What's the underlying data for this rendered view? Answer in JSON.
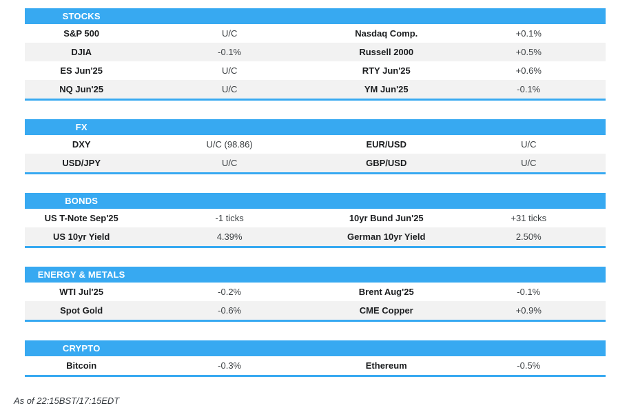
{
  "page": {
    "accent_color": "#37a9f1",
    "row_alt_color": "#f2f2f2",
    "footer": "As of 22:15BST/17:15EDT"
  },
  "sections": [
    {
      "title": "STOCKS",
      "rows": [
        {
          "label1": "S&P 500",
          "value1": "U/C",
          "label2": "Nasdaq Comp.",
          "value2": "+0.1%"
        },
        {
          "label1": "DJIA",
          "value1": "-0.1%",
          "label2": "Russell 2000",
          "value2": "+0.5%"
        },
        {
          "label1": "ES Jun'25",
          "value1": "U/C",
          "label2": "RTY Jun'25",
          "value2": "+0.6%"
        },
        {
          "label1": "NQ Jun'25",
          "value1": "U/C",
          "label2": "YM Jun'25",
          "value2": "-0.1%"
        }
      ]
    },
    {
      "title": "FX",
      "rows": [
        {
          "label1": "DXY",
          "value1": "U/C (98.86)",
          "label2": "EUR/USD",
          "value2": "U/C"
        },
        {
          "label1": "USD/JPY",
          "value1": "U/C",
          "label2": "GBP/USD",
          "value2": "U/C"
        }
      ]
    },
    {
      "title": "BONDS",
      "rows": [
        {
          "label1": "US T-Note Sep'25",
          "value1": "-1 ticks",
          "label2": "10yr Bund Jun'25",
          "value2": "+31 ticks"
        },
        {
          "label1": "US 10yr Yield",
          "value1": "4.39%",
          "label2": "German 10yr Yield",
          "value2": "2.50%"
        }
      ]
    },
    {
      "title": "ENERGY & METALS",
      "rows": [
        {
          "label1": "WTI Jul'25",
          "value1": "-0.2%",
          "label2": "Brent Aug'25",
          "value2": "-0.1%"
        },
        {
          "label1": "Spot Gold",
          "value1": "-0.6%",
          "label2": "CME Copper",
          "value2": "+0.9%"
        }
      ]
    },
    {
      "title": "CRYPTO",
      "rows": [
        {
          "label1": "Bitcoin",
          "value1": "-0.3%",
          "label2": "Ethereum",
          "value2": "-0.5%"
        }
      ]
    }
  ]
}
